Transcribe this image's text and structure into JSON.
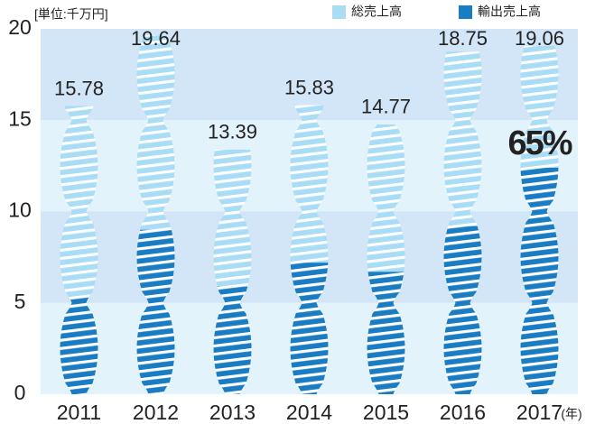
{
  "chart_data": {
    "type": "bar",
    "unit_label": "[単位:千万円]",
    "x_unit_label": "(年)",
    "categories": [
      "2011",
      "2012",
      "2013",
      "2014",
      "2015",
      "2016",
      "2017"
    ],
    "series": [
      {
        "name": "総売上高",
        "color": "#a9dcf5",
        "values": [
          15.78,
          19.64,
          13.39,
          15.83,
          14.77,
          18.75,
          19.06
        ]
      },
      {
        "name": "輸出売上高",
        "color": "#1a7dc4",
        "values": [
          5.3,
          9.0,
          5.9,
          7.2,
          6.7,
          9.2,
          12.4
        ]
      }
    ],
    "annotation": "65%",
    "ylim": [
      0,
      20
    ],
    "yticks": [
      0,
      5,
      10,
      15,
      20
    ],
    "band_colors": [
      "#e3f3fc",
      "#d2e6f7"
    ]
  }
}
